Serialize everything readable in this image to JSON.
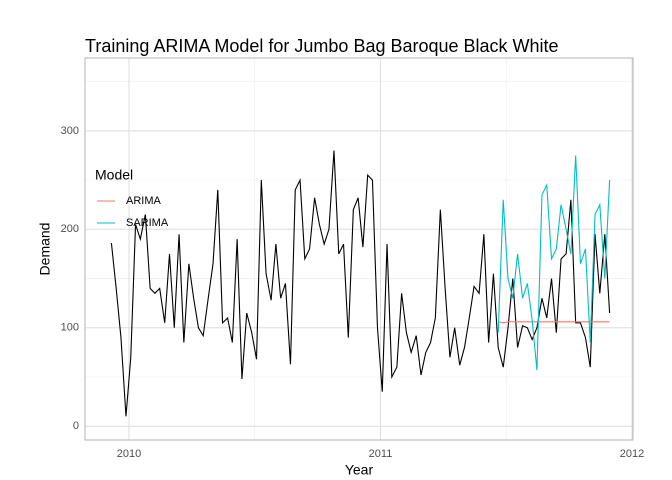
{
  "chart_data": {
    "type": "line",
    "title": "Training ARIMA Model for Jumbo Bag Baroque Black White",
    "x_label": "Year",
    "y_label": "Demand",
    "legend_title": "Model",
    "legend_position": "left",
    "grid": true,
    "xlim": [
      2009.825,
      2012.004
    ],
    "ylim": [
      -14,
      374
    ],
    "xticks": [
      2010,
      2011,
      2012
    ],
    "yticks": [
      0,
      100,
      200,
      300
    ],
    "x_minor_ticks": [
      2010.5,
      2011.5
    ],
    "y_minor_ticks": [
      50,
      150,
      250,
      350
    ],
    "x": [
      2009.93,
      2009.949,
      2009.968,
      2009.988,
      2010.007,
      2010.026,
      2010.045,
      2010.065,
      2010.084,
      2010.103,
      2010.122,
      2010.142,
      2010.161,
      2010.18,
      2010.199,
      2010.218,
      2010.238,
      2010.257,
      2010.276,
      2010.295,
      2010.315,
      2010.334,
      2010.353,
      2010.372,
      2010.392,
      2010.411,
      2010.43,
      2010.449,
      2010.468,
      2010.488,
      2010.507,
      2010.526,
      2010.545,
      2010.565,
      2010.584,
      2010.603,
      2010.622,
      2010.642,
      2010.661,
      2010.68,
      2010.699,
      2010.718,
      2010.738,
      2010.757,
      2010.776,
      2010.795,
      2010.815,
      2010.834,
      2010.853,
      2010.872,
      2010.892,
      2010.911,
      2010.93,
      2010.949,
      2010.968,
      2010.988,
      2011.007,
      2011.026,
      2011.045,
      2011.065,
      2011.084,
      2011.103,
      2011.122,
      2011.142,
      2011.161,
      2011.18,
      2011.199,
      2011.218,
      2011.238,
      2011.257,
      2011.276,
      2011.295,
      2011.315,
      2011.334,
      2011.353,
      2011.372,
      2011.392,
      2011.411,
      2011.43,
      2011.449,
      2011.468,
      2011.488,
      2011.507,
      2011.526,
      2011.545,
      2011.565,
      2011.584,
      2011.603,
      2011.622,
      2011.642,
      2011.661,
      2011.68,
      2011.699,
      2011.718,
      2011.738,
      2011.757,
      2011.776,
      2011.795,
      2011.815,
      2011.834,
      2011.853,
      2011.872,
      2011.892,
      2011.911
    ],
    "series": [
      {
        "color": "#000000",
        "values": [
          186,
          140,
          90,
          10,
          70,
          205,
          190,
          215,
          140,
          135,
          140,
          105,
          175,
          100,
          195,
          85,
          165,
          130,
          100,
          92,
          130,
          165,
          240,
          105,
          110,
          85,
          190,
          48,
          115,
          95,
          68,
          250,
          155,
          128,
          185,
          130,
          145,
          63,
          240,
          250,
          170,
          180,
          232,
          205,
          185,
          200,
          280,
          175,
          185,
          90,
          220,
          232,
          182,
          255,
          250,
          100,
          35,
          185,
          50,
          60,
          135,
          95,
          75,
          92,
          52,
          75,
          85,
          110,
          220,
          140,
          70,
          100,
          62,
          80,
          110,
          142,
          135,
          195,
          85,
          155,
          80,
          60,
          100,
          150,
          80,
          102,
          100,
          88,
          100,
          130,
          110,
          150,
          95,
          170,
          175,
          230,
          105,
          105,
          90,
          60,
          195,
          135,
          195,
          115
        ]
      },
      {
        "name": "ARIMA",
        "color": "#F8766D",
        "values": [
          null,
          null,
          null,
          null,
          null,
          null,
          null,
          null,
          null,
          null,
          null,
          null,
          null,
          null,
          null,
          null,
          null,
          null,
          null,
          null,
          null,
          null,
          null,
          null,
          null,
          null,
          null,
          null,
          null,
          null,
          null,
          null,
          null,
          null,
          null,
          null,
          null,
          null,
          null,
          null,
          null,
          null,
          null,
          null,
          null,
          null,
          null,
          null,
          null,
          null,
          null,
          null,
          null,
          null,
          null,
          null,
          null,
          null,
          null,
          null,
          null,
          null,
          null,
          null,
          null,
          null,
          null,
          null,
          null,
          null,
          null,
          null,
          null,
          null,
          null,
          null,
          null,
          null,
          null,
          null,
          106,
          105,
          106,
          106,
          106,
          106,
          106,
          106,
          106,
          106,
          106,
          106,
          106,
          106,
          106,
          106,
          106,
          106,
          106,
          106,
          106,
          106,
          106,
          106
        ]
      },
      {
        "name": "SARIMA",
        "color": "#00BFC4",
        "values": [
          null,
          null,
          null,
          null,
          null,
          null,
          null,
          null,
          null,
          null,
          null,
          null,
          null,
          null,
          null,
          null,
          null,
          null,
          null,
          null,
          null,
          null,
          null,
          null,
          null,
          null,
          null,
          null,
          null,
          null,
          null,
          null,
          null,
          null,
          null,
          null,
          null,
          null,
          null,
          null,
          null,
          null,
          null,
          null,
          null,
          null,
          null,
          null,
          null,
          null,
          null,
          null,
          null,
          null,
          null,
          null,
          null,
          null,
          null,
          null,
          null,
          null,
          null,
          null,
          null,
          null,
          null,
          null,
          null,
          null,
          null,
          null,
          null,
          null,
          null,
          null,
          null,
          null,
          null,
          null,
          95,
          230,
          150,
          130,
          175,
          130,
          145,
          108,
          57,
          235,
          245,
          170,
          180,
          225,
          200,
          175,
          275,
          165,
          180,
          85,
          215,
          225,
          150,
          250
        ]
      }
    ]
  }
}
